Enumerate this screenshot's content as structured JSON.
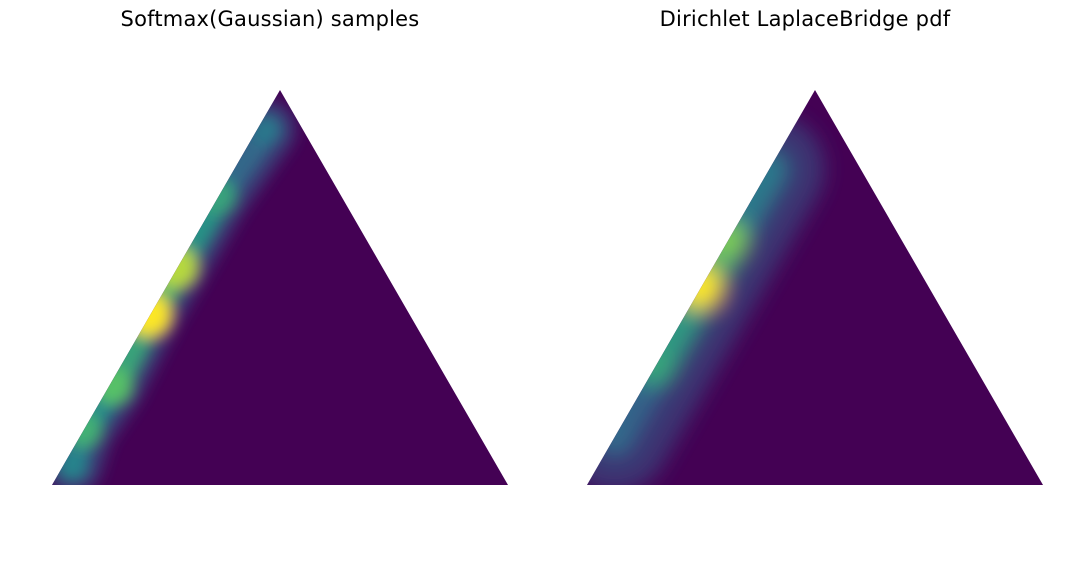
{
  "chart_data": [
    {
      "type": "heatmap",
      "title": "Softmax(Gaussian) samples",
      "xlabel": "",
      "ylabel": "",
      "grid": false,
      "legend": "none",
      "axes": "off",
      "colormap": "viridis",
      "domain": "probability simplex (3 classes, ternary triangle)",
      "density_peak": {
        "barycentric": [
          0.43,
          0.0,
          0.57
        ],
        "relative_density": 1.0
      },
      "density_ridge_points": [
        {
          "barycentric": [
            0.05,
            0.02,
            0.93
          ],
          "relative_density": 0.45
        },
        {
          "barycentric": [
            0.14,
            0.0,
            0.86
          ],
          "relative_density": 0.65
        },
        {
          "barycentric": [
            0.25,
            0.01,
            0.74
          ],
          "relative_density": 0.72
        },
        {
          "barycentric": [
            0.43,
            0.0,
            0.57
          ],
          "relative_density": 1.0
        },
        {
          "barycentric": [
            0.55,
            0.0,
            0.45
          ],
          "relative_density": 0.9
        },
        {
          "barycentric": [
            0.73,
            0.0,
            0.27
          ],
          "relative_density": 0.6
        },
        {
          "barycentric": [
            0.9,
            0.02,
            0.08
          ],
          "relative_density": 0.4
        }
      ]
    },
    {
      "type": "heatmap",
      "title": "Dirichlet LaplaceBridge pdf",
      "xlabel": "",
      "ylabel": "",
      "grid": false,
      "legend": "none",
      "axes": "off",
      "colormap": "viridis",
      "domain": "probability simplex (3 classes, ternary triangle)",
      "density_peak": {
        "barycentric": [
          0.5,
          0.0,
          0.5
        ],
        "relative_density": 1.0
      },
      "density_ridge_points": [
        {
          "barycentric": [
            0.12,
            0.0,
            0.88
          ],
          "relative_density": 0.35
        },
        {
          "barycentric": [
            0.3,
            0.0,
            0.7
          ],
          "relative_density": 0.6
        },
        {
          "barycentric": [
            0.5,
            0.0,
            0.5
          ],
          "relative_density": 1.0
        },
        {
          "barycentric": [
            0.62,
            0.0,
            0.38
          ],
          "relative_density": 0.8
        },
        {
          "barycentric": [
            0.8,
            0.0,
            0.2
          ],
          "relative_density": 0.4
        }
      ]
    }
  ]
}
